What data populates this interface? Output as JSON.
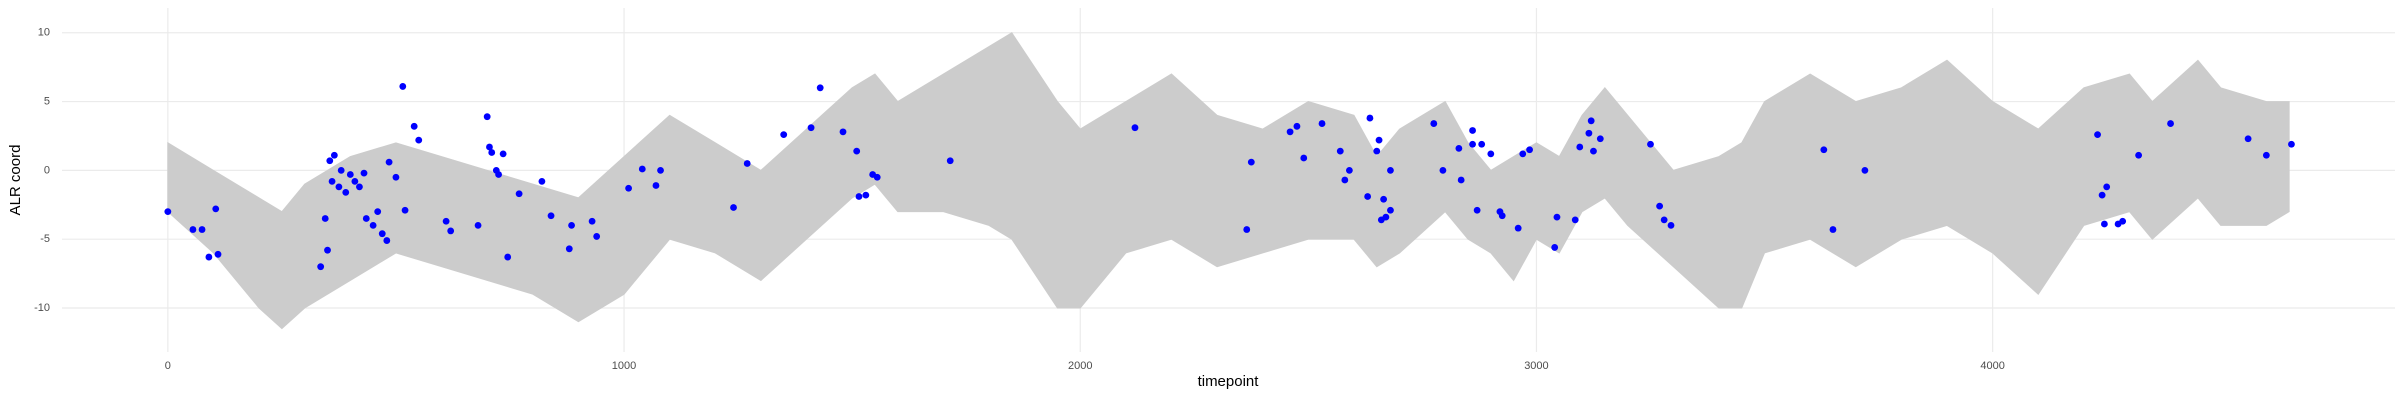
{
  "chart_data": {
    "type": "scatter",
    "x_label": "timepoint",
    "y_label": "ALR coord",
    "xlim": [
      -232,
      4882
    ],
    "ylim": [
      -13.2,
      11.8
    ],
    "xticks": [
      0,
      1000,
      2000,
      3000,
      4000
    ],
    "yticks": [
      -10,
      -5,
      0,
      5,
      10
    ],
    "grid": true,
    "color": "#0000ff",
    "x": [
      0,
      55,
      75,
      90,
      105,
      110,
      335,
      345,
      350,
      355,
      365,
      360,
      375,
      380,
      390,
      400,
      410,
      420,
      430,
      435,
      450,
      460,
      470,
      480,
      485,
      500,
      515,
      520,
      540,
      550,
      610,
      620,
      680,
      700,
      705,
      710,
      720,
      725,
      735,
      745,
      770,
      820,
      840,
      880,
      885,
      930,
      940,
      1010,
      1040,
      1070,
      1080,
      1240,
      1270,
      1350,
      1410,
      1430,
      1480,
      1510,
      1515,
      1530,
      1545,
      1555,
      1715,
      2120,
      2365,
      2375,
      2460,
      2475,
      2490,
      2530,
      2570,
      2580,
      2590,
      2630,
      2635,
      2650,
      2655,
      2660,
      2665,
      2670,
      2680,
      2680,
      2775,
      2795,
      2830,
      2835,
      2860,
      2860,
      2870,
      2880,
      2900,
      2920,
      2925,
      2960,
      2970,
      2985,
      3040,
      3045,
      3085,
      3095,
      3115,
      3120,
      3125,
      3140,
      3250,
      3270,
      3280,
      3295,
      3630,
      3650,
      3720,
      4230,
      4240,
      4245,
      4250,
      4275,
      4285,
      4320,
      4390,
      4560,
      4600,
      4655
    ],
    "values": [
      -3,
      -4.3,
      -4.3,
      -6.3,
      -2.8,
      -6.1,
      -7,
      -3.5,
      -5.8,
      0.7,
      1.1,
      -0.8,
      -1.2,
      0,
      -1.6,
      -0.3,
      -0.8,
      -1.2,
      -0.2,
      -3.5,
      -4,
      -3,
      -4.6,
      -5.1,
      0.6,
      -0.5,
      6.1,
      -2.9,
      3.2,
      2.2,
      -3.7,
      -4.4,
      -4,
      3.9,
      1.7,
      1.3,
      0,
      -0.3,
      1.2,
      -6.3,
      -1.7,
      -0.8,
      -3.3,
      -5.7,
      -4,
      -3.7,
      -4.8,
      -1.3,
      0.1,
      -1.1,
      0,
      -2.7,
      0.5,
      2.6,
      3.1,
      6,
      2.8,
      1.4,
      -1.9,
      -1.8,
      -0.3,
      -0.5,
      0.7,
      3.1,
      -4.3,
      0.6,
      2.8,
      3.2,
      0.9,
      3.4,
      1.4,
      -0.7,
      0,
      -1.9,
      3.8,
      1.4,
      2.2,
      -3.6,
      -2.1,
      -3.4,
      -2.9,
      0,
      3.4,
      0,
      1.6,
      -0.7,
      2.9,
      1.9,
      -2.9,
      1.9,
      1.2,
      -3,
      -3.3,
      -4.2,
      1.2,
      1.5,
      -5.6,
      -3.4,
      -3.6,
      1.7,
      2.7,
      3.6,
      1.4,
      2.3,
      1.9,
      -2.6,
      -3.6,
      -4,
      1.5,
      -4.3,
      0,
      2.6,
      -1.8,
      -3.9,
      -1.2,
      -3.9,
      -3.7,
      1.1,
      3.4,
      2.3,
      1.1,
      1.9
    ],
    "ribbon": {
      "color": "#cccccc",
      "x": [
        0,
        100,
        200,
        250,
        300,
        400,
        500,
        600,
        700,
        800,
        900,
        1000,
        1100,
        1200,
        1300,
        1400,
        1500,
        1550,
        1600,
        1700,
        1800,
        1850,
        1950,
        2000,
        2100,
        2200,
        2300,
        2400,
        2500,
        2600,
        2650,
        2700,
        2800,
        2850,
        2900,
        2950,
        3000,
        3050,
        3100,
        3150,
        3200,
        3300,
        3400,
        3450,
        3500,
        3600,
        3700,
        3800,
        3900,
        4000,
        4100,
        4200,
        4300,
        4350,
        4450,
        4500,
        4600,
        4650
      ],
      "upper": [
        2,
        0,
        -2,
        -3,
        -1,
        1,
        2,
        1,
        0,
        -1,
        -2,
        1,
        4,
        2,
        0,
        3,
        6,
        7,
        5,
        7,
        9,
        10,
        5,
        3,
        5,
        7,
        4,
        3,
        5,
        4,
        1,
        3,
        5,
        2,
        0,
        1,
        2,
        1,
        4,
        6,
        4,
        0,
        1,
        2,
        5,
        7,
        5,
        6,
        8,
        5,
        3,
        6,
        7,
        5,
        8,
        6,
        5,
        5
      ],
      "lower": [
        -3,
        -6,
        -10,
        -11.5,
        -10,
        -8,
        -6,
        -7,
        -8,
        -9,
        -11,
        -9,
        -5,
        -6,
        -8,
        -5,
        -2,
        -1,
        -3,
        -3,
        -4,
        -5,
        -10,
        -10,
        -6,
        -5,
        -7,
        -6,
        -5,
        -5,
        -7,
        -6,
        -3,
        -5,
        -6,
        -8,
        -5,
        -6,
        -3,
        -2,
        -4,
        -7,
        -10,
        -10,
        -6,
        -5,
        -7,
        -5,
        -4,
        -6,
        -9,
        -4,
        -3,
        -5,
        -2,
        -4,
        -4,
        -3
      ]
    }
  }
}
